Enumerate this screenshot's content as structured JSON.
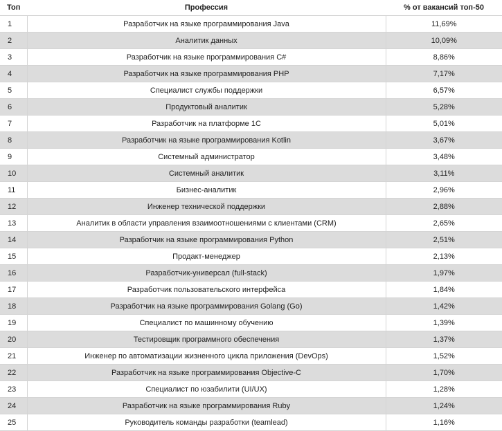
{
  "table": {
    "headers": {
      "rank": "Топ",
      "profession": "Профессия",
      "percent": "% от вакансий топ-50"
    },
    "rows": [
      {
        "rank": "1",
        "profession": "Разработчик на языке программирования Java",
        "percent": "11,69%"
      },
      {
        "rank": "2",
        "profession": "Аналитик данных",
        "percent": "10,09%"
      },
      {
        "rank": "3",
        "profession": "Разработчик на языке программирования C#",
        "percent": "8,86%"
      },
      {
        "rank": "4",
        "profession": "Разработчик на языке программирования PHP",
        "percent": "7,17%"
      },
      {
        "rank": "5",
        "profession": "Специалист службы поддержки",
        "percent": "6,57%"
      },
      {
        "rank": "6",
        "profession": "Продуктовый аналитик",
        "percent": "5,28%"
      },
      {
        "rank": "7",
        "profession": "Разработчик на платформе 1С",
        "percent": "5,01%"
      },
      {
        "rank": "8",
        "profession": "Разработчик на языке программирования Kotlin",
        "percent": "3,67%"
      },
      {
        "rank": "9",
        "profession": "Системный администратор",
        "percent": "3,48%"
      },
      {
        "rank": "10",
        "profession": "Системный аналитик",
        "percent": "3,11%"
      },
      {
        "rank": "11",
        "profession": "Бизнес-аналитик",
        "percent": "2,96%"
      },
      {
        "rank": "12",
        "profession": "Инженер технической поддержки",
        "percent": "2,88%"
      },
      {
        "rank": "13",
        "profession": "Аналитик в области управления взаимоотношениями с клиентами (CRM)",
        "percent": "2,65%"
      },
      {
        "rank": "14",
        "profession": "Разработчик на языке программирования Python",
        "percent": "2,51%"
      },
      {
        "rank": "15",
        "profession": "Продакт-менеджер",
        "percent": "2,13%"
      },
      {
        "rank": "16",
        "profession": "Разработчик-универсал (full-stack)",
        "percent": "1,97%"
      },
      {
        "rank": "17",
        "profession": "Разработчик пользовательского интерфейса",
        "percent": "1,84%"
      },
      {
        "rank": "18",
        "profession": "Разработчик на языке программирования Golang (Go)",
        "percent": "1,42%"
      },
      {
        "rank": "19",
        "profession": "Специалист по машинному обучению",
        "percent": "1,39%"
      },
      {
        "rank": "20",
        "profession": "Тестировщик программного обеспечения",
        "percent": "1,37%"
      },
      {
        "rank": "21",
        "profession": "Инженер по автоматизации жизненного цикла приложения (DevOps)",
        "percent": "1,52%"
      },
      {
        "rank": "22",
        "profession": "Разработчик на языке программирования Objective-C",
        "percent": "1,70%"
      },
      {
        "rank": "23",
        "profession": "Специалист по юзабилити (UI/UX)",
        "percent": "1,28%"
      },
      {
        "rank": "24",
        "profession": "Разработчик на языке программирования Ruby",
        "percent": "1,24%"
      },
      {
        "rank": "25",
        "profession": "Руководитель команды разработки (teamlead)",
        "percent": "1,16%"
      }
    ]
  }
}
